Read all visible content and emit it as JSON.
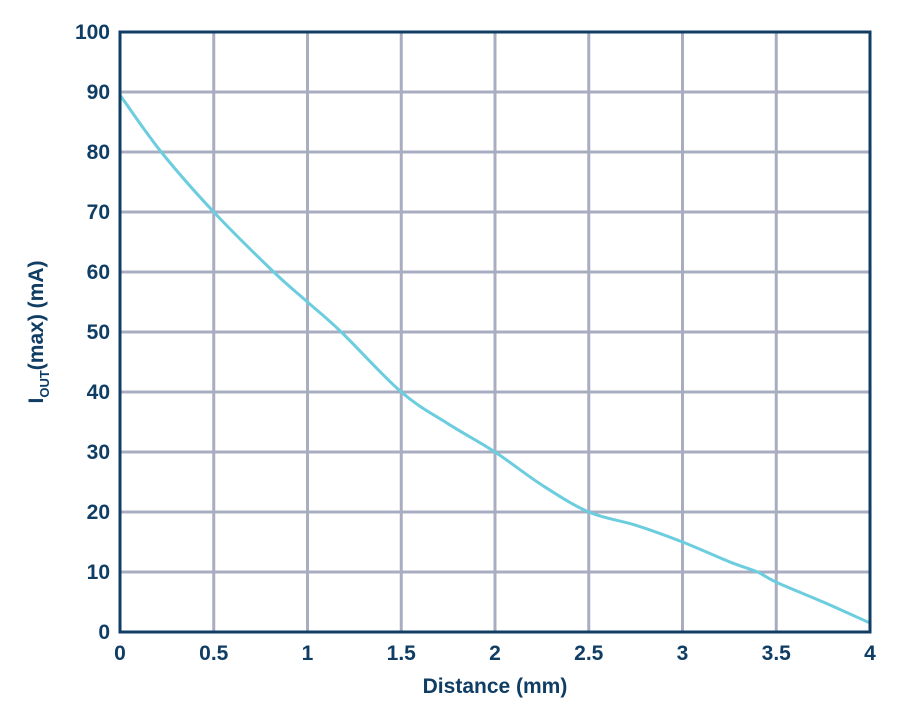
{
  "chart_data": {
    "type": "line",
    "title": "",
    "xlabel": "Distance (mm)",
    "ylabel": "I_OUT(max) (mA)",
    "ylabel_parts": {
      "main": "I",
      "sub": "OUT",
      "rest": "(max) (mA)"
    },
    "xlim": [
      0,
      4
    ],
    "ylim": [
      0,
      100
    ],
    "grid": true,
    "legend": null,
    "x_ticks": [
      "0",
      "0.5",
      "1",
      "1.5",
      "2",
      "2.5",
      "3",
      "3.5",
      "4"
    ],
    "y_ticks": [
      "0",
      "10",
      "20",
      "30",
      "40",
      "50",
      "60",
      "70",
      "80",
      "90",
      "100"
    ],
    "series": [
      {
        "name": "IOUT(max)",
        "color": "#6ccddf",
        "x": [
          0,
          0.22,
          0.5,
          0.82,
          1.0,
          1.18,
          1.5,
          1.75,
          2.0,
          2.25,
          2.5,
          2.75,
          3.0,
          3.25,
          3.4,
          3.5,
          3.75,
          4.0
        ],
        "y": [
          89.5,
          80,
          70,
          60,
          55,
          50,
          40,
          34.7,
          30,
          24.5,
          20,
          17.8,
          15,
          11.7,
          10,
          8.3,
          5,
          1.5
        ]
      }
    ],
    "colors": {
      "axis": "#0f3d64",
      "grid": "#a9adc2",
      "line": "#6ccddf",
      "text": "#0f3d64"
    }
  }
}
